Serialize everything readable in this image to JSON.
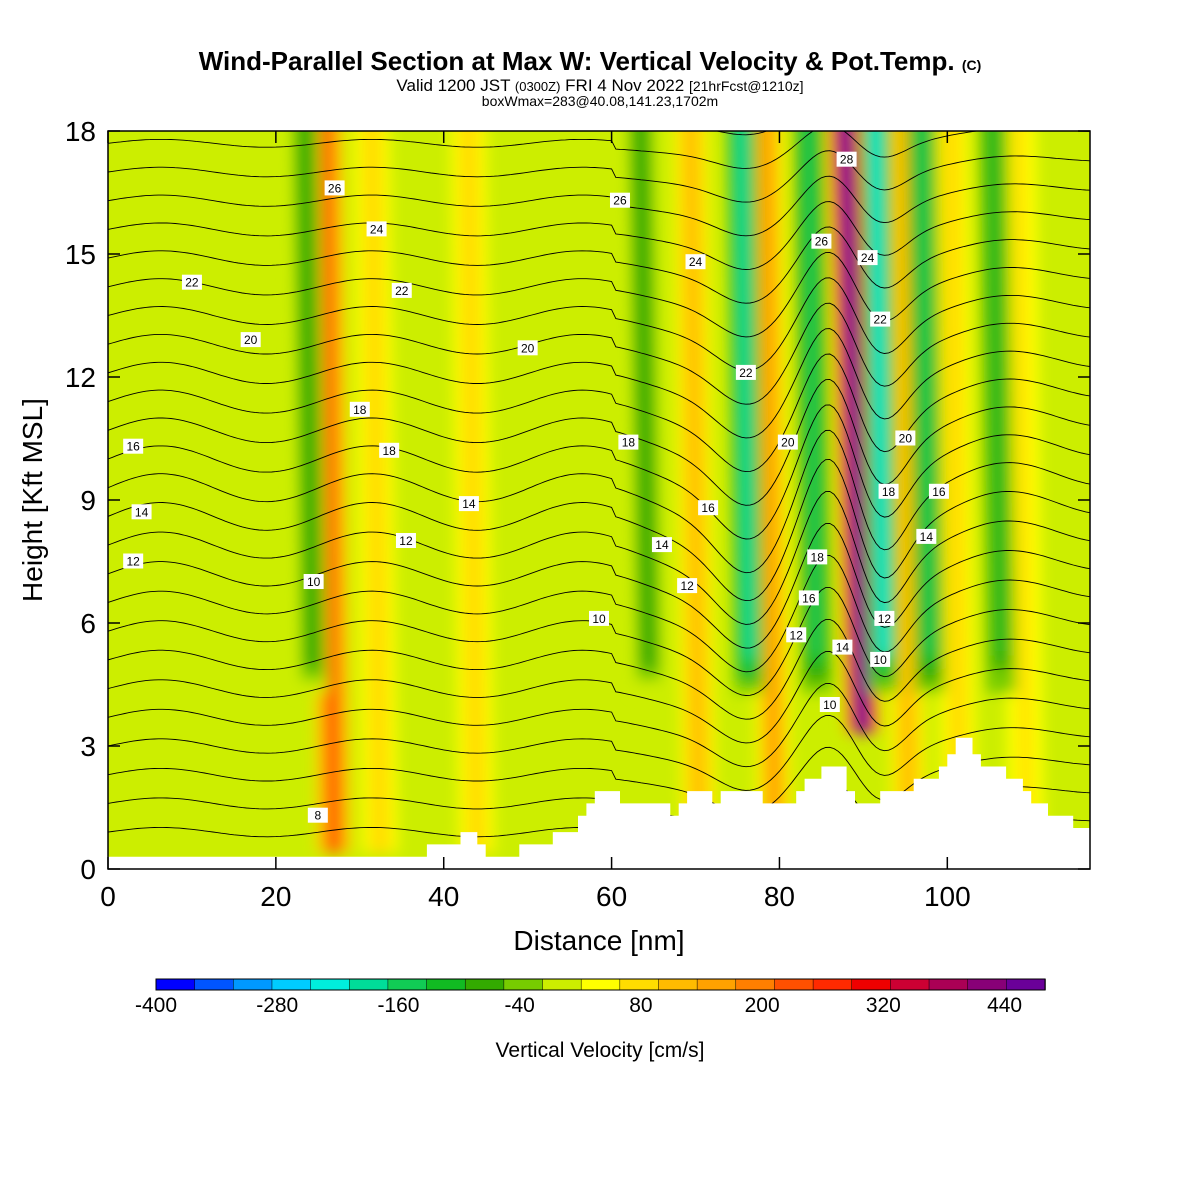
{
  "chart_data": {
    "type": "heatmap",
    "title": "Wind-Parallel Section at Max W: Vertical Velocity & Pot.Temp.",
    "title_mark": "(C)",
    "subtitle": {
      "valid": "Valid 1200 JST",
      "utc": "(0300Z)",
      "date": "FRI 4 Nov 2022",
      "forecast": "[21hrFcst@1210z]"
    },
    "subtitle2": "boxWmax=283@40.08,141.23,1702m",
    "xlabel": "Distance [nm]",
    "ylabel": "Height [Kft MSL]",
    "xlim": [
      0,
      117
    ],
    "ylim": [
      0,
      18
    ],
    "x_ticks": [
      0,
      20,
      40,
      60,
      80,
      100
    ],
    "y_ticks": [
      0,
      3,
      6,
      9,
      12,
      15,
      18
    ],
    "colorbar": {
      "label": "Vertical Velocity [cm/s]",
      "range": [
        -400,
        480
      ],
      "tick_labels": [
        -400,
        -280,
        -160,
        -40,
        80,
        200,
        320,
        440
      ],
      "colors": [
        "#0000ff",
        "#0055ff",
        "#0099ff",
        "#00ccff",
        "#00eedd",
        "#00dd99",
        "#11cc55",
        "#11bb22",
        "#33aa00",
        "#77cc00",
        "#ccee00",
        "#ffff00",
        "#ffdd00",
        "#ffbb00",
        "#ffa200",
        "#ff7f00",
        "#ff5000",
        "#ff2a00",
        "#ee0000",
        "#cc0033",
        "#aa0055",
        "#880077",
        "#6a0099"
      ]
    },
    "updrafts": [
      {
        "x": 26.5,
        "peak": 220
      },
      {
        "x": 32,
        "peak": 90
      },
      {
        "x": 43.5,
        "peak": 80
      },
      {
        "x": 70,
        "peak": 110
      },
      {
        "x": 79,
        "peak": 150
      },
      {
        "x": 89,
        "peak": 470
      },
      {
        "x": 95,
        "peak": 110
      },
      {
        "x": 101,
        "peak": 90
      },
      {
        "x": 109,
        "peak": 70
      }
    ],
    "downdrafts": [
      {
        "x": 24,
        "peak": -80
      },
      {
        "x": 64,
        "peak": -90
      },
      {
        "x": 76,
        "peak": -200
      },
      {
        "x": 84,
        "peak": -160
      },
      {
        "x": 92,
        "peak": -230
      },
      {
        "x": 97.5,
        "peak": -140
      },
      {
        "x": 106,
        "peak": -120
      }
    ],
    "theta_contour_labels": [
      {
        "text": "26",
        "x": 27,
        "y": 16.6
      },
      {
        "text": "26",
        "x": 61,
        "y": 16.3
      },
      {
        "text": "28",
        "x": 88,
        "y": 17.3
      },
      {
        "text": "24",
        "x": 32,
        "y": 15.6
      },
      {
        "text": "24",
        "x": 70,
        "y": 14.8
      },
      {
        "text": "26",
        "x": 85,
        "y": 15.3
      },
      {
        "text": "24",
        "x": 90.5,
        "y": 14.9
      },
      {
        "text": "22",
        "x": 10,
        "y": 14.3
      },
      {
        "text": "22",
        "x": 35,
        "y": 14.1
      },
      {
        "text": "22",
        "x": 92,
        "y": 13.4
      },
      {
        "text": "20",
        "x": 17,
        "y": 12.9
      },
      {
        "text": "20",
        "x": 50,
        "y": 12.7
      },
      {
        "text": "22",
        "x": 76,
        "y": 12.1
      },
      {
        "text": "18",
        "x": 30,
        "y": 11.2
      },
      {
        "text": "16",
        "x": 3,
        "y": 10.3
      },
      {
        "text": "18",
        "x": 33.5,
        "y": 10.2
      },
      {
        "text": "18",
        "x": 62,
        "y": 10.4
      },
      {
        "text": "20",
        "x": 81,
        "y": 10.4
      },
      {
        "text": "20",
        "x": 95,
        "y": 10.5
      },
      {
        "text": "18",
        "x": 93,
        "y": 9.2
      },
      {
        "text": "16",
        "x": 99,
        "y": 9.2
      },
      {
        "text": "14",
        "x": 4,
        "y": 8.7
      },
      {
        "text": "14",
        "x": 43,
        "y": 8.9
      },
      {
        "text": "16",
        "x": 71.5,
        "y": 8.8
      },
      {
        "text": "12",
        "x": 3,
        "y": 7.5
      },
      {
        "text": "12",
        "x": 35.5,
        "y": 8.0
      },
      {
        "text": "14",
        "x": 66,
        "y": 7.9
      },
      {
        "text": "14",
        "x": 97.5,
        "y": 8.1
      },
      {
        "text": "18",
        "x": 84.5,
        "y": 7.6
      },
      {
        "text": "10",
        "x": 24.5,
        "y": 7.0
      },
      {
        "text": "12",
        "x": 69,
        "y": 6.9
      },
      {
        "text": "16",
        "x": 83.5,
        "y": 6.6
      },
      {
        "text": "10",
        "x": 58.5,
        "y": 6.1
      },
      {
        "text": "12",
        "x": 92.5,
        "y": 6.1
      },
      {
        "text": "12",
        "x": 82,
        "y": 5.7
      },
      {
        "text": "14",
        "x": 87.5,
        "y": 5.4
      },
      {
        "text": "10",
        "x": 92,
        "y": 5.1
      },
      {
        "text": "10",
        "x": 86,
        "y": 4.0
      },
      {
        "text": "8",
        "x": 25,
        "y": 1.3
      }
    ],
    "terrain": [
      [
        0,
        0.3
      ],
      [
        38,
        0.3
      ],
      [
        38,
        0.6
      ],
      [
        40,
        0.6
      ],
      [
        40,
        0.6
      ],
      [
        42,
        0.6
      ],
      [
        42,
        0.9
      ],
      [
        44,
        0.9
      ],
      [
        44,
        0.6
      ],
      [
        45,
        0.6
      ],
      [
        45,
        0.3
      ],
      [
        49,
        0.3
      ],
      [
        49,
        0.6
      ],
      [
        53,
        0.6
      ],
      [
        53,
        0.9
      ],
      [
        56,
        0.9
      ],
      [
        56,
        1.3
      ],
      [
        57,
        1.3
      ],
      [
        57,
        1.6
      ],
      [
        58,
        1.6
      ],
      [
        58,
        1.9
      ],
      [
        61,
        1.9
      ],
      [
        61,
        1.6
      ],
      [
        67,
        1.6
      ],
      [
        67,
        1.3
      ],
      [
        68,
        1.3
      ],
      [
        68,
        1.6
      ],
      [
        69,
        1.6
      ],
      [
        69,
        1.9
      ],
      [
        72,
        1.9
      ],
      [
        72,
        1.6
      ],
      [
        73,
        1.6
      ],
      [
        73,
        1.9
      ],
      [
        78,
        1.9
      ],
      [
        78,
        1.6
      ],
      [
        82,
        1.6
      ],
      [
        82,
        1.9
      ],
      [
        83,
        1.9
      ],
      [
        83,
        2.2
      ],
      [
        85,
        2.2
      ],
      [
        85,
        2.5
      ],
      [
        88,
        2.5
      ],
      [
        88,
        1.9
      ],
      [
        89,
        1.9
      ],
      [
        89,
        1.6
      ],
      [
        92,
        1.6
      ],
      [
        92,
        1.9
      ],
      [
        96,
        1.9
      ],
      [
        96,
        2.2
      ],
      [
        99,
        2.2
      ],
      [
        99,
        2.5
      ],
      [
        100,
        2.5
      ],
      [
        100,
        2.8
      ],
      [
        101,
        2.8
      ],
      [
        101,
        3.2
      ],
      [
        103,
        3.2
      ],
      [
        103,
        2.8
      ],
      [
        104,
        2.8
      ],
      [
        104,
        2.5
      ],
      [
        107,
        2.5
      ],
      [
        107,
        2.2
      ],
      [
        109,
        2.2
      ],
      [
        109,
        1.9
      ],
      [
        110,
        1.9
      ],
      [
        110,
        1.6
      ],
      [
        112,
        1.6
      ],
      [
        112,
        1.3
      ],
      [
        115,
        1.3
      ],
      [
        115,
        1.0
      ],
      [
        117,
        1.0
      ],
      [
        117,
        0
      ]
    ]
  }
}
